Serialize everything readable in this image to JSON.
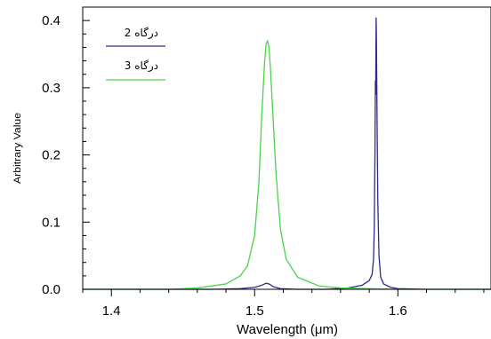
{
  "chart_data": {
    "type": "line",
    "title": "",
    "xlabel": "Wavelength (μm)",
    "ylabel": "Arbitrary Value",
    "xlim": [
      1.38,
      1.665
    ],
    "ylim": [
      0,
      0.42
    ],
    "x_ticks": [
      1.4,
      1.5,
      1.6
    ],
    "x_tick_labels": [
      "1.4",
      "1.5",
      "1.6"
    ],
    "y_ticks": [
      0.0,
      0.1,
      0.2,
      0.3,
      0.4
    ],
    "y_tick_labels": [
      "0.0",
      "0.1",
      "0.2",
      "0.3",
      "0.4"
    ],
    "grid": false,
    "legend_position": "top-left",
    "series": [
      {
        "name": "درگاه 2",
        "color": "#2d2a8a",
        "x": [
          1.38,
          1.45,
          1.47,
          1.49,
          1.5,
          1.505,
          1.508,
          1.51,
          1.513,
          1.518,
          1.53,
          1.55,
          1.565,
          1.575,
          1.58,
          1.582,
          1.583,
          1.5835,
          1.584,
          1.5843,
          1.5845,
          1.5848,
          1.585,
          1.5853,
          1.5856,
          1.586,
          1.5868,
          1.588,
          1.59,
          1.595,
          1.6,
          1.62,
          1.665
        ],
        "y": [
          0.0,
          0.0,
          0.0,
          0.001,
          0.003,
          0.006,
          0.009,
          0.008,
          0.004,
          0.001,
          0.0,
          0.0,
          0.002,
          0.006,
          0.013,
          0.022,
          0.045,
          0.09,
          0.2,
          0.31,
          0.29,
          0.404,
          0.38,
          0.3,
          0.22,
          0.13,
          0.05,
          0.018,
          0.008,
          0.003,
          0.001,
          0.0,
          0.0
        ]
      },
      {
        "name": "درگاه  3",
        "color": "#4cd24c",
        "x": [
          1.38,
          1.44,
          1.46,
          1.48,
          1.49,
          1.495,
          1.5,
          1.503,
          1.505,
          1.507,
          1.508,
          1.509,
          1.51,
          1.511,
          1.513,
          1.515,
          1.518,
          1.522,
          1.53,
          1.545,
          1.56,
          1.6,
          1.665
        ],
        "y": [
          0.0,
          0.0,
          0.002,
          0.008,
          0.02,
          0.035,
          0.08,
          0.16,
          0.26,
          0.34,
          0.365,
          0.37,
          0.36,
          0.33,
          0.25,
          0.17,
          0.09,
          0.045,
          0.018,
          0.005,
          0.002,
          0.0,
          0.0
        ]
      }
    ]
  }
}
